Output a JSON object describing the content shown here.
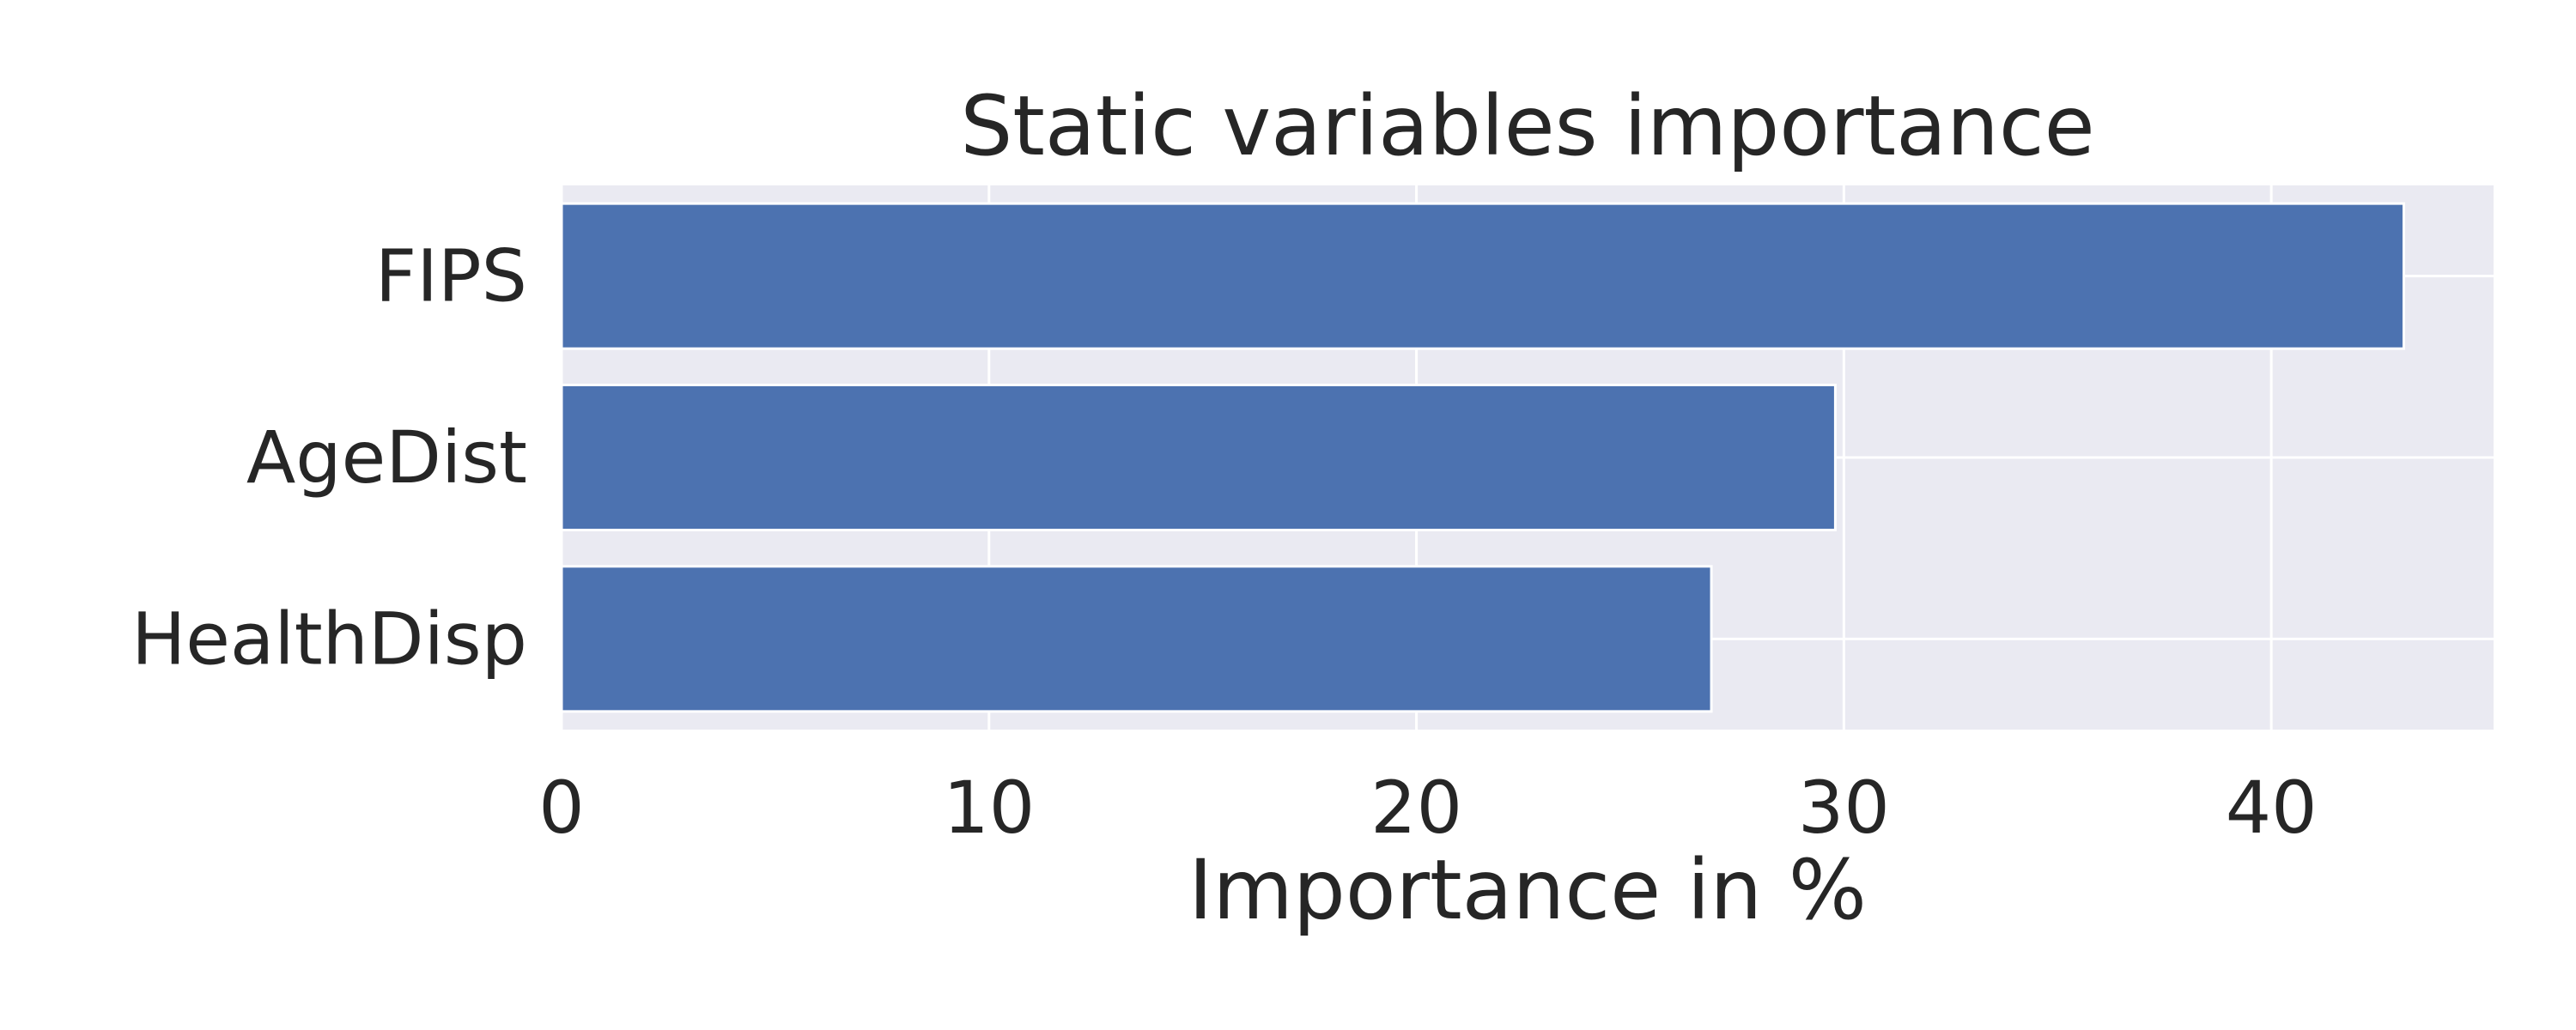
{
  "chart_data": {
    "type": "bar",
    "orientation": "horizontal",
    "title": "Static variables importance",
    "xlabel": "Importance in %",
    "ylabel": "",
    "categories": [
      "FIPS",
      "AgeDist",
      "HealthDisp"
    ],
    "values": [
      43.1,
      29.8,
      26.9
    ],
    "xlim": [
      0,
      45.2
    ],
    "xticks": [
      0,
      10,
      20,
      30,
      40
    ],
    "grid": true,
    "legend": "none",
    "colors": {
      "bar": "#4c72b0",
      "plot_background": "#eaeaf2",
      "grid": "#ffffff",
      "text": "#262626"
    }
  }
}
